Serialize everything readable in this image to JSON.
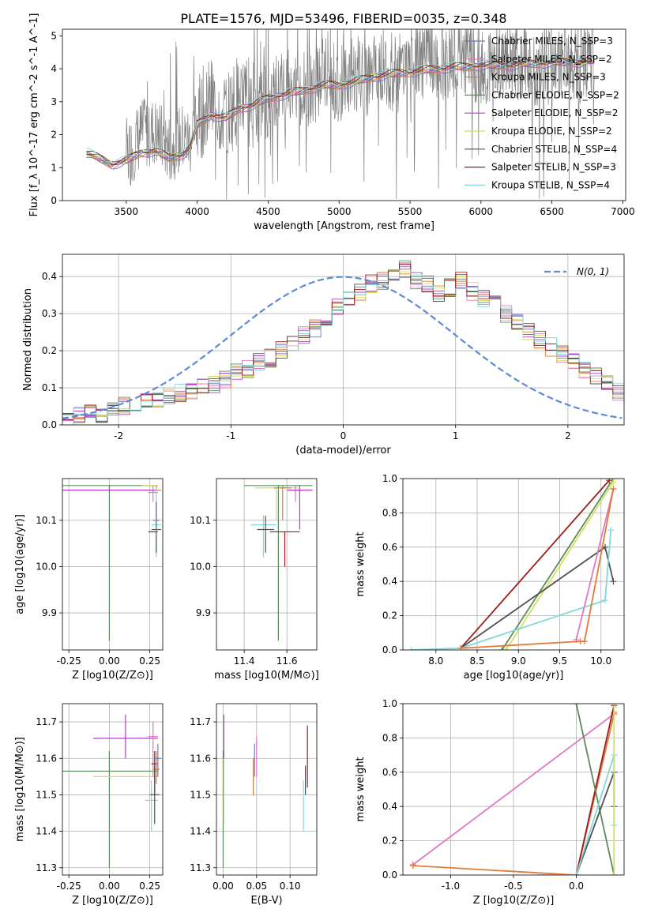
{
  "figure": {
    "title": "PLATE=1576, MJD=53496, FIBERID=0035, z=0.348"
  },
  "chart_data": [
    {
      "id": "spectrum",
      "type": "line",
      "xlabel": "wavelength [Angstrom, rest frame]",
      "ylabel": "Flux [f_λ 10^-17 erg cm^-2 s^-1 A^-1]",
      "xlim": [
        3050,
        7020
      ],
      "ylim": [
        0,
        5.2
      ],
      "xticks": [
        3500,
        4000,
        4500,
        5000,
        5500,
        6000,
        6500,
        7000
      ],
      "yticks": [
        0,
        1,
        2,
        3,
        4,
        5
      ],
      "grid": false,
      "legend_position": "top-right",
      "data_wavelength": [
        3220,
        3300,
        3400,
        3500,
        3600,
        3700,
        3800,
        3900,
        3950,
        4000,
        4100,
        4200,
        4300,
        4400,
        4500,
        4600,
        4700,
        4800,
        4900,
        5000,
        5100,
        5200,
        5300,
        5400,
        5500,
        5600,
        5700,
        5800,
        5900,
        6000,
        6100,
        6200,
        6300,
        6400,
        6500,
        6600,
        6700,
        6800
      ],
      "data_flux": [
        1.4,
        1.3,
        1.05,
        1.3,
        2.0,
        2.1,
        1.6,
        1.9,
        1.8,
        2.5,
        3.0,
        2.6,
        3.2,
        2.9,
        3.1,
        3.5,
        3.3,
        3.4,
        3.8,
        3.5,
        3.9,
        3.6,
        4.2,
        3.8,
        4.1,
        4.3,
        4.0,
        4.2,
        4.4,
        4.0,
        4.3,
        4.1,
        4.2,
        3.9,
        4.1,
        4.3,
        4.0,
        4.4
      ],
      "model_flux": [
        1.45,
        1.3,
        1.1,
        1.2,
        1.45,
        1.5,
        1.3,
        1.4,
        1.6,
        2.3,
        2.6,
        2.5,
        2.8,
        2.9,
        3.1,
        3.2,
        3.3,
        3.4,
        3.5,
        3.5,
        3.6,
        3.7,
        3.8,
        3.85,
        3.9,
        3.95,
        4.0,
        4.05,
        4.05,
        4.1,
        4.1,
        4.1,
        4.15,
        4.15,
        4.2,
        4.2,
        4.2,
        4.25
      ],
      "series": [
        {
          "name": "Chabrier MILES, N_SSP=3",
          "color": "#6a7bb8"
        },
        {
          "name": "Salpeter MILES, N_SSP=2",
          "color": "#e377c2"
        },
        {
          "name": "Kroupa MILES, N_SSP=3",
          "color": "#e07b39"
        },
        {
          "name": "Chabrier ELODIE, N_SSP=2",
          "color": "#5c8a5c"
        },
        {
          "name": "Salpeter ELODIE, N_SSP=2",
          "color": "#b43cc8"
        },
        {
          "name": "Kroupa ELODIE, N_SSP=2",
          "color": "#d4e05a"
        },
        {
          "name": "Chabrier STELIB, N_SSP=4",
          "color": "#505050"
        },
        {
          "name": "Salpeter STELIB, N_SSP=3",
          "color": "#a01c1c"
        },
        {
          "name": "Kroupa STELIB, N_SSP=4",
          "color": "#7fd8dc"
        }
      ]
    },
    {
      "id": "residuals",
      "type": "line",
      "xlabel": "(data-model)/error",
      "ylabel": "Normed distribution",
      "xlim": [
        -2.5,
        2.5
      ],
      "ylim": [
        0,
        0.46
      ],
      "xticks": [
        -2,
        -1,
        0,
        1,
        2
      ],
      "yticks": [
        0.0,
        0.1,
        0.2,
        0.3,
        0.4
      ],
      "grid": true,
      "legend_position": "top-right",
      "legend_label": "N(0, 1)",
      "histogram_bin_width": 0.1,
      "histogram_base": [
        0.02,
        0.025,
        0.03,
        0.03,
        0.04,
        0.05,
        0.055,
        0.06,
        0.07,
        0.08,
        0.085,
        0.09,
        0.1,
        0.11,
        0.12,
        0.14,
        0.15,
        0.17,
        0.18,
        0.2,
        0.22,
        0.24,
        0.26,
        0.29,
        0.32,
        0.34,
        0.36,
        0.38,
        0.39,
        0.4,
        0.42,
        0.39,
        0.38,
        0.35,
        0.37,
        0.39,
        0.36,
        0.34,
        0.33,
        0.3,
        0.28,
        0.25,
        0.23,
        0.21,
        0.19,
        0.17,
        0.15,
        0.13,
        0.11,
        0.09,
        0.08
      ]
    },
    {
      "id": "z-age",
      "type": "scatter",
      "xlabel": "Z [log10(Z/Z⊙)]",
      "ylabel": "age [log10(age/yr)]",
      "xlim": [
        -0.29,
        0.33
      ],
      "ylim": [
        9.82,
        10.19
      ],
      "xticks": [
        -0.25,
        0.0,
        0.25
      ],
      "yticks": [
        9.9,
        10.0,
        10.1
      ],
      "grid": true,
      "points": [
        {
          "x": 0.0,
          "y": 10.175,
          "xerr": 0.3,
          "ymin": 9.84,
          "ymax": 10.175,
          "color": "#5c8a5c"
        },
        {
          "x": 0.25,
          "y": 10.175,
          "xerr": 0.05,
          "ymin": 10.175,
          "ymax": 10.175,
          "color": "#d4e05a"
        },
        {
          "x": 0.29,
          "y": 10.165,
          "xerr": 0.03,
          "ymin": 10.165,
          "ymax": 10.175,
          "color": "#e07b39"
        },
        {
          "x": 0.27,
          "y": 10.16,
          "xerr": 0.03,
          "ymin": 10.14,
          "ymax": 10.175,
          "color": "#e377c2"
        },
        {
          "x": 0.0,
          "y": 10.165,
          "xerr": 0.29,
          "ymin": 10.165,
          "ymax": 10.165,
          "color": "#b43cc8"
        },
        {
          "x": 0.29,
          "y": 10.09,
          "xerr": 0.03,
          "ymin": 10.02,
          "ymax": 10.17,
          "color": "#7fd8dc"
        },
        {
          "x": 0.29,
          "y": 10.08,
          "xerr": 0.03,
          "ymin": 10.03,
          "ymax": 10.14,
          "color": "#505050"
        },
        {
          "x": 0.27,
          "y": 10.075,
          "xerr": 0.03,
          "ymin": 10.075,
          "ymax": 10.075,
          "color": "#a01c1c"
        },
        {
          "x": 0.29,
          "y": 10.1,
          "xerr": 0.02,
          "ymin": 10.07,
          "ymax": 10.14,
          "color": "#6a7bb8"
        }
      ]
    },
    {
      "id": "mass-age",
      "type": "scatter",
      "xlabel": "mass [log10(M/M⊙)]",
      "ylabel": "",
      "xlim": [
        11.27,
        11.74
      ],
      "ylim": [
        9.82,
        10.19
      ],
      "xticks": [
        11.4,
        11.6
      ],
      "yticks": [
        9.9,
        10.0,
        10.1
      ],
      "grid": true,
      "points": [
        {
          "x": 11.56,
          "y": 10.175,
          "xerr": 0.16,
          "ymin": 9.84,
          "ymax": 10.175,
          "color": "#5c8a5c"
        },
        {
          "x": 11.55,
          "y": 10.17,
          "xerr": 0.1,
          "ymin": 10.1,
          "ymax": 10.17,
          "color": "#d4e05a"
        },
        {
          "x": 11.58,
          "y": 10.17,
          "xerr": 0.04,
          "ymin": 10.1,
          "ymax": 10.175,
          "color": "#e07b39"
        },
        {
          "x": 11.64,
          "y": 10.165,
          "xerr": 0.04,
          "ymin": 10.14,
          "ymax": 10.175,
          "color": "#e377c2"
        },
        {
          "x": 11.66,
          "y": 10.165,
          "xerr": 0.06,
          "ymin": 10.08,
          "ymax": 10.175,
          "color": "#b43cc8"
        },
        {
          "x": 11.49,
          "y": 10.09,
          "xerr": 0.06,
          "ymin": 10.02,
          "ymax": 10.11,
          "color": "#7fd8dc"
        },
        {
          "x": 11.5,
          "y": 10.08,
          "xerr": 0.04,
          "ymin": 10.03,
          "ymax": 10.11,
          "color": "#505050"
        },
        {
          "x": 11.59,
          "y": 10.075,
          "xerr": 0.07,
          "ymin": 10.0,
          "ymax": 10.075,
          "color": "#a01c1c"
        }
      ]
    },
    {
      "id": "age-massweight",
      "type": "line",
      "xlabel": "age [log10(age/yr)]",
      "ylabel": "mass weight",
      "xlim": [
        7.6,
        10.28
      ],
      "ylim": [
        0,
        1.0
      ],
      "xticks": [
        8.0,
        8.5,
        9.0,
        9.5,
        10.0
      ],
      "yticks": [
        0.0,
        0.2,
        0.4,
        0.6,
        0.8,
        1.0
      ],
      "grid": true,
      "series": [
        {
          "color": "#a01c1c",
          "x": [
            8.3,
            10.1
          ],
          "y": [
            0.01,
            0.99
          ]
        },
        {
          "color": "#5c8a5c",
          "x": [
            8.8,
            10.15
          ],
          "y": [
            0.0,
            1.0
          ]
        },
        {
          "color": "#d4e05a",
          "x": [
            8.85,
            10.15
          ],
          "y": [
            0.0,
            0.98
          ]
        },
        {
          "color": "#505050",
          "x": [
            8.3,
            10.05,
            10.15
          ],
          "y": [
            0.01,
            0.6,
            0.4
          ]
        },
        {
          "color": "#7fd8dc",
          "x": [
            7.7,
            8.3,
            10.05,
            10.12
          ],
          "y": [
            0.0,
            0.01,
            0.29,
            0.7
          ]
        },
        {
          "color": "#e377c2",
          "x": [
            9.7,
            10.15
          ],
          "y": [
            0.06,
            0.94
          ]
        },
        {
          "color": "#e07b39",
          "x": [
            8.3,
            9.75,
            9.8,
            10.15
          ],
          "y": [
            0.01,
            0.05,
            0.05,
            0.94
          ]
        }
      ]
    },
    {
      "id": "z-mass",
      "type": "scatter",
      "xlabel": "Z [log10(Z/Z⊙)]",
      "ylabel": "mass [log10(M/M⊙)]",
      "xlim": [
        -0.29,
        0.33
      ],
      "ylim": [
        11.28,
        11.75
      ],
      "xticks": [
        -0.25,
        0.0,
        0.25
      ],
      "yticks": [
        11.3,
        11.4,
        11.5,
        11.6,
        11.7
      ],
      "grid": true,
      "points": [
        {
          "x": 0.0,
          "y": 11.565,
          "xerr": 0.3,
          "ymin": 11.3,
          "ymax": 11.62,
          "color": "#5c8a5c"
        },
        {
          "x": 0.1,
          "y": 11.55,
          "xerr": 0.2,
          "ymin": 11.55,
          "ymax": 11.55,
          "color": "#d4e05a"
        },
        {
          "x": 0.1,
          "y": 11.655,
          "xerr": 0.2,
          "ymin": 11.6,
          "ymax": 11.72,
          "color": "#b43cc8"
        },
        {
          "x": 0.27,
          "y": 11.66,
          "xerr": 0.03,
          "ymin": 11.55,
          "ymax": 11.7,
          "color": "#e377c2"
        },
        {
          "x": 0.28,
          "y": 11.585,
          "xerr": 0.02,
          "ymin": 11.5,
          "ymax": 11.62,
          "color": "#a01c1c"
        },
        {
          "x": 0.29,
          "y": 11.57,
          "xerr": 0.02,
          "ymin": 11.53,
          "ymax": 11.62,
          "color": "#e07b39"
        },
        {
          "x": 0.26,
          "y": 11.485,
          "xerr": 0.04,
          "ymin": 11.4,
          "ymax": 11.54,
          "color": "#7fd8dc"
        },
        {
          "x": 0.28,
          "y": 11.5,
          "xerr": 0.03,
          "ymin": 11.42,
          "ymax": 11.58,
          "color": "#505050"
        },
        {
          "x": 0.3,
          "y": 11.6,
          "xerr": 0.02,
          "ymin": 11.55,
          "ymax": 11.64,
          "color": "#6a7bb8"
        }
      ]
    },
    {
      "id": "ebv-mass",
      "type": "scatter",
      "xlabel": "E(B-V)",
      "ylabel": "",
      "xlim": [
        -0.01,
        0.14
      ],
      "ylim": [
        11.28,
        11.75
      ],
      "xticks": [
        0.0,
        0.05,
        0.1
      ],
      "yticks": [
        11.3,
        11.4,
        11.5,
        11.6,
        11.7
      ],
      "grid": true,
      "points": [
        {
          "x": 0.0,
          "y": 11.55,
          "ymin": 11.3,
          "ymax": 11.62,
          "color": "#5c8a5c"
        },
        {
          "x": 0.001,
          "y": 11.5,
          "ymin": 11.42,
          "ymax": 11.6,
          "color": "#d4e05a"
        },
        {
          "x": 0.001,
          "y": 11.65,
          "ymin": 11.6,
          "ymax": 11.72,
          "color": "#b43cc8"
        },
        {
          "x": 0.045,
          "y": 11.55,
          "ymin": 11.5,
          "ymax": 11.6,
          "color": "#e07b39"
        },
        {
          "x": 0.047,
          "y": 11.6,
          "ymin": 11.55,
          "ymax": 11.64,
          "color": "#6a7bb8"
        },
        {
          "x": 0.05,
          "y": 11.62,
          "ymin": 11.55,
          "ymax": 11.66,
          "color": "#e377c2"
        },
        {
          "x": 0.12,
          "y": 11.47,
          "ymin": 11.4,
          "ymax": 11.54,
          "color": "#7fd8dc"
        },
        {
          "x": 0.123,
          "y": 11.55,
          "ymin": 11.5,
          "ymax": 11.58,
          "color": "#505050"
        },
        {
          "x": 0.126,
          "y": 11.62,
          "ymin": 11.52,
          "ymax": 11.69,
          "color": "#a01c1c"
        }
      ]
    },
    {
      "id": "z-massweight",
      "type": "line",
      "xlabel": "Z [log10(Z/Z⊙)]",
      "ylabel": "mass weight",
      "xlim": [
        -1.38,
        0.38
      ],
      "ylim": [
        0,
        1.0
      ],
      "xticks": [
        -1.0,
        -0.5,
        0.0
      ],
      "yticks": [
        0.0,
        0.2,
        0.4,
        0.6,
        0.8,
        1.0
      ],
      "grid": true,
      "series": [
        {
          "color": "#e377c2",
          "x": [
            -1.3,
            0.3
          ],
          "y": [
            0.06,
            0.94
          ]
        },
        {
          "color": "#e07b39",
          "x": [
            -1.3,
            0.0,
            0.3,
            0.3
          ],
          "y": [
            0.055,
            0.0,
            0.94,
            0.95
          ]
        },
        {
          "color": "#a01c1c",
          "x": [
            0.0,
            0.3
          ],
          "y": [
            0.0,
            0.99
          ]
        },
        {
          "color": "#5c8a5c",
          "x": [
            0.0,
            0.3
          ],
          "y": [
            1.0,
            0.0
          ]
        },
        {
          "color": "#505050",
          "x": [
            0.0,
            0.3,
            0.3
          ],
          "y": [
            0.0,
            0.6,
            0.4
          ]
        },
        {
          "color": "#7fd8dc",
          "x": [
            -0.3,
            0.0,
            0.3,
            0.3
          ],
          "y": [
            0.0,
            0.0,
            0.7,
            0.29
          ]
        },
        {
          "color": "#d4e05a",
          "x": [
            0.3,
            0.3
          ],
          "y": [
            0.0,
            0.98
          ]
        }
      ]
    }
  ]
}
